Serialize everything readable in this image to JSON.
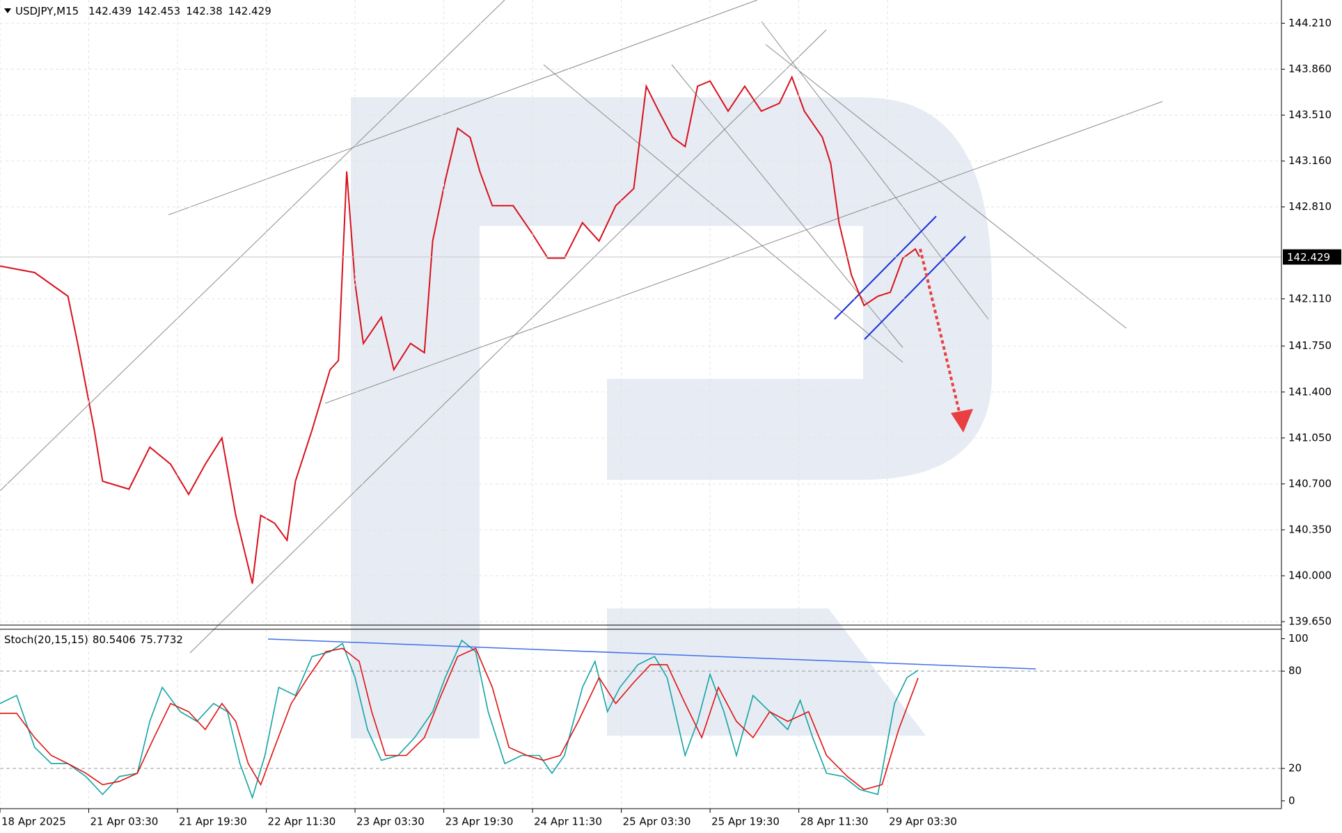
{
  "chart_data": [
    {
      "type": "line",
      "title": "USDJPY,M15",
      "quote": [
        142.439,
        142.453,
        142.38,
        142.429
      ],
      "last": 142.429,
      "color": "#d8101c",
      "grid": true,
      "xlim": [
        0,
        924
      ],
      "ylim": [
        139.624,
        144.387
      ],
      "yticks": [
        {
          "value": 144.21,
          "label": "144.210"
        },
        {
          "value": 143.86,
          "label": "143.860"
        },
        {
          "value": 143.51,
          "label": "143.510"
        },
        {
          "value": 143.16,
          "label": "143.160"
        },
        {
          "value": 142.81,
          "label": "142.810"
        },
        {
          "value": 142.11,
          "label": "142.110"
        },
        {
          "value": 141.75,
          "label": "141.750"
        },
        {
          "value": 141.4,
          "label": "141.400"
        },
        {
          "value": 141.05,
          "label": "141.050"
        },
        {
          "value": 140.7,
          "label": "140.700"
        },
        {
          "value": 140.35,
          "label": "140.350"
        },
        {
          "value": 140.0,
          "label": "140.000"
        },
        {
          "value": 139.65,
          "label": "139.650"
        }
      ],
      "x": [
        0,
        25,
        49,
        56,
        68,
        74,
        93,
        108,
        123,
        136,
        148,
        160,
        170,
        176,
        182,
        188,
        198,
        207,
        213,
        225,
        238,
        244,
        250,
        256,
        262,
        275,
        284,
        296,
        306,
        312,
        321,
        330,
        339,
        346,
        355,
        370,
        383,
        395,
        407,
        420,
        432,
        444,
        457,
        466,
        475,
        485,
        494,
        503,
        512,
        525,
        537,
        549,
        562,
        571,
        580,
        593,
        599,
        605,
        614,
        623,
        633,
        642,
        651,
        660,
        663
      ],
      "values": [
        142.36,
        142.31,
        142.13,
        141.77,
        141.11,
        140.72,
        140.66,
        140.98,
        140.85,
        140.62,
        140.85,
        141.05,
        140.46,
        140.2,
        139.94,
        140.46,
        140.4,
        140.27,
        140.72,
        141.11,
        141.57,
        141.64,
        143.08,
        142.23,
        141.77,
        141.97,
        141.57,
        141.77,
        141.7,
        142.55,
        143.01,
        143.41,
        143.34,
        143.08,
        142.82,
        142.82,
        142.62,
        142.42,
        142.42,
        142.69,
        142.55,
        142.82,
        142.95,
        143.73,
        143.54,
        143.34,
        143.27,
        143.73,
        143.77,
        143.54,
        143.73,
        143.54,
        143.6,
        143.8,
        143.54,
        143.34,
        143.14,
        142.69,
        142.29,
        142.06,
        142.13,
        142.16,
        142.42,
        142.49,
        142.43
      ]
    },
    {
      "type": "line",
      "title": "Stoch(20,15,15)",
      "readout": [
        80.5406,
        75.7732
      ],
      "xlim": [
        0,
        924
      ],
      "ylim": [
        -4.8,
        105.8
      ],
      "yticks": [
        100,
        80,
        20,
        0
      ],
      "level_lines": [
        80,
        20
      ],
      "xticks": [
        {
          "value": 0,
          "label": "18 Apr 2025"
        },
        {
          "value": 64,
          "label": "21 Apr 03:30"
        },
        {
          "value": 128,
          "label": "21 Apr 19:30"
        },
        {
          "value": 192,
          "label": "22 Apr 11:30"
        },
        {
          "value": 256,
          "label": "23 Apr 03:30"
        },
        {
          "value": 320,
          "label": "23 Apr 19:30"
        },
        {
          "value": 384,
          "label": "24 Apr 11:30"
        },
        {
          "value": 448,
          "label": "25 Apr 03:30"
        },
        {
          "value": 512,
          "label": "25 Apr 19:30"
        },
        {
          "value": 576,
          "label": "28 Apr 11:30"
        },
        {
          "value": 640,
          "label": "29 Apr 03:30"
        }
      ],
      "series": [
        {
          "color": "#13a3a3",
          "x": [
            0,
            12,
            25,
            37,
            49,
            62,
            74,
            86,
            99,
            108,
            117,
            130,
            142,
            154,
            164,
            173,
            182,
            191,
            201,
            213,
            225,
            238,
            247,
            256,
            265,
            275,
            287,
            299,
            312,
            321,
            333,
            343,
            352,
            364,
            376,
            389,
            398,
            407,
            420,
            429,
            438,
            447,
            460,
            472,
            481,
            494,
            503,
            512,
            522,
            531,
            543,
            555,
            568,
            577,
            586,
            596,
            608,
            620,
            633,
            645,
            654,
            662
          ],
          "values": [
            60,
            65,
            33,
            23,
            23,
            15,
            4,
            15,
            17,
            49,
            70,
            55,
            49,
            60,
            55,
            23,
            2,
            28,
            70,
            65,
            89,
            92,
            97,
            76,
            44,
            25,
            28,
            39,
            55,
            76,
            99,
            92,
            55,
            23,
            28,
            28,
            17,
            28,
            70,
            86,
            55,
            70,
            84,
            89,
            76,
            28,
            49,
            78,
            55,
            28,
            65,
            55,
            44,
            62,
            39,
            17,
            15,
            7,
            4,
            60,
            76,
            80.5
          ]
        },
        {
          "color": "#e01010",
          "x": [
            0,
            12,
            25,
            37,
            49,
            62,
            74,
            86,
            99,
            111,
            123,
            136,
            148,
            160,
            170,
            179,
            188,
            198,
            210,
            222,
            235,
            247,
            259,
            268,
            278,
            293,
            306,
            318,
            330,
            343,
            355,
            367,
            380,
            392,
            404,
            417,
            432,
            444,
            457,
            469,
            481,
            494,
            506,
            518,
            531,
            543,
            555,
            568,
            583,
            596,
            611,
            623,
            636,
            648,
            662
          ],
          "values": [
            54,
            54,
            39,
            28,
            23,
            17,
            10,
            12,
            17,
            39,
            60,
            55,
            44,
            60,
            49,
            23,
            10,
            33,
            60,
            76,
            92,
            94,
            86,
            55,
            28,
            28,
            39,
            65,
            89,
            94,
            70,
            33,
            28,
            25,
            28,
            49,
            76,
            60,
            73,
            84,
            84,
            60,
            39,
            70,
            49,
            39,
            55,
            49,
            55,
            28,
            15,
            7,
            10,
            44,
            75.8
          ]
        }
      ]
    }
  ]
}
